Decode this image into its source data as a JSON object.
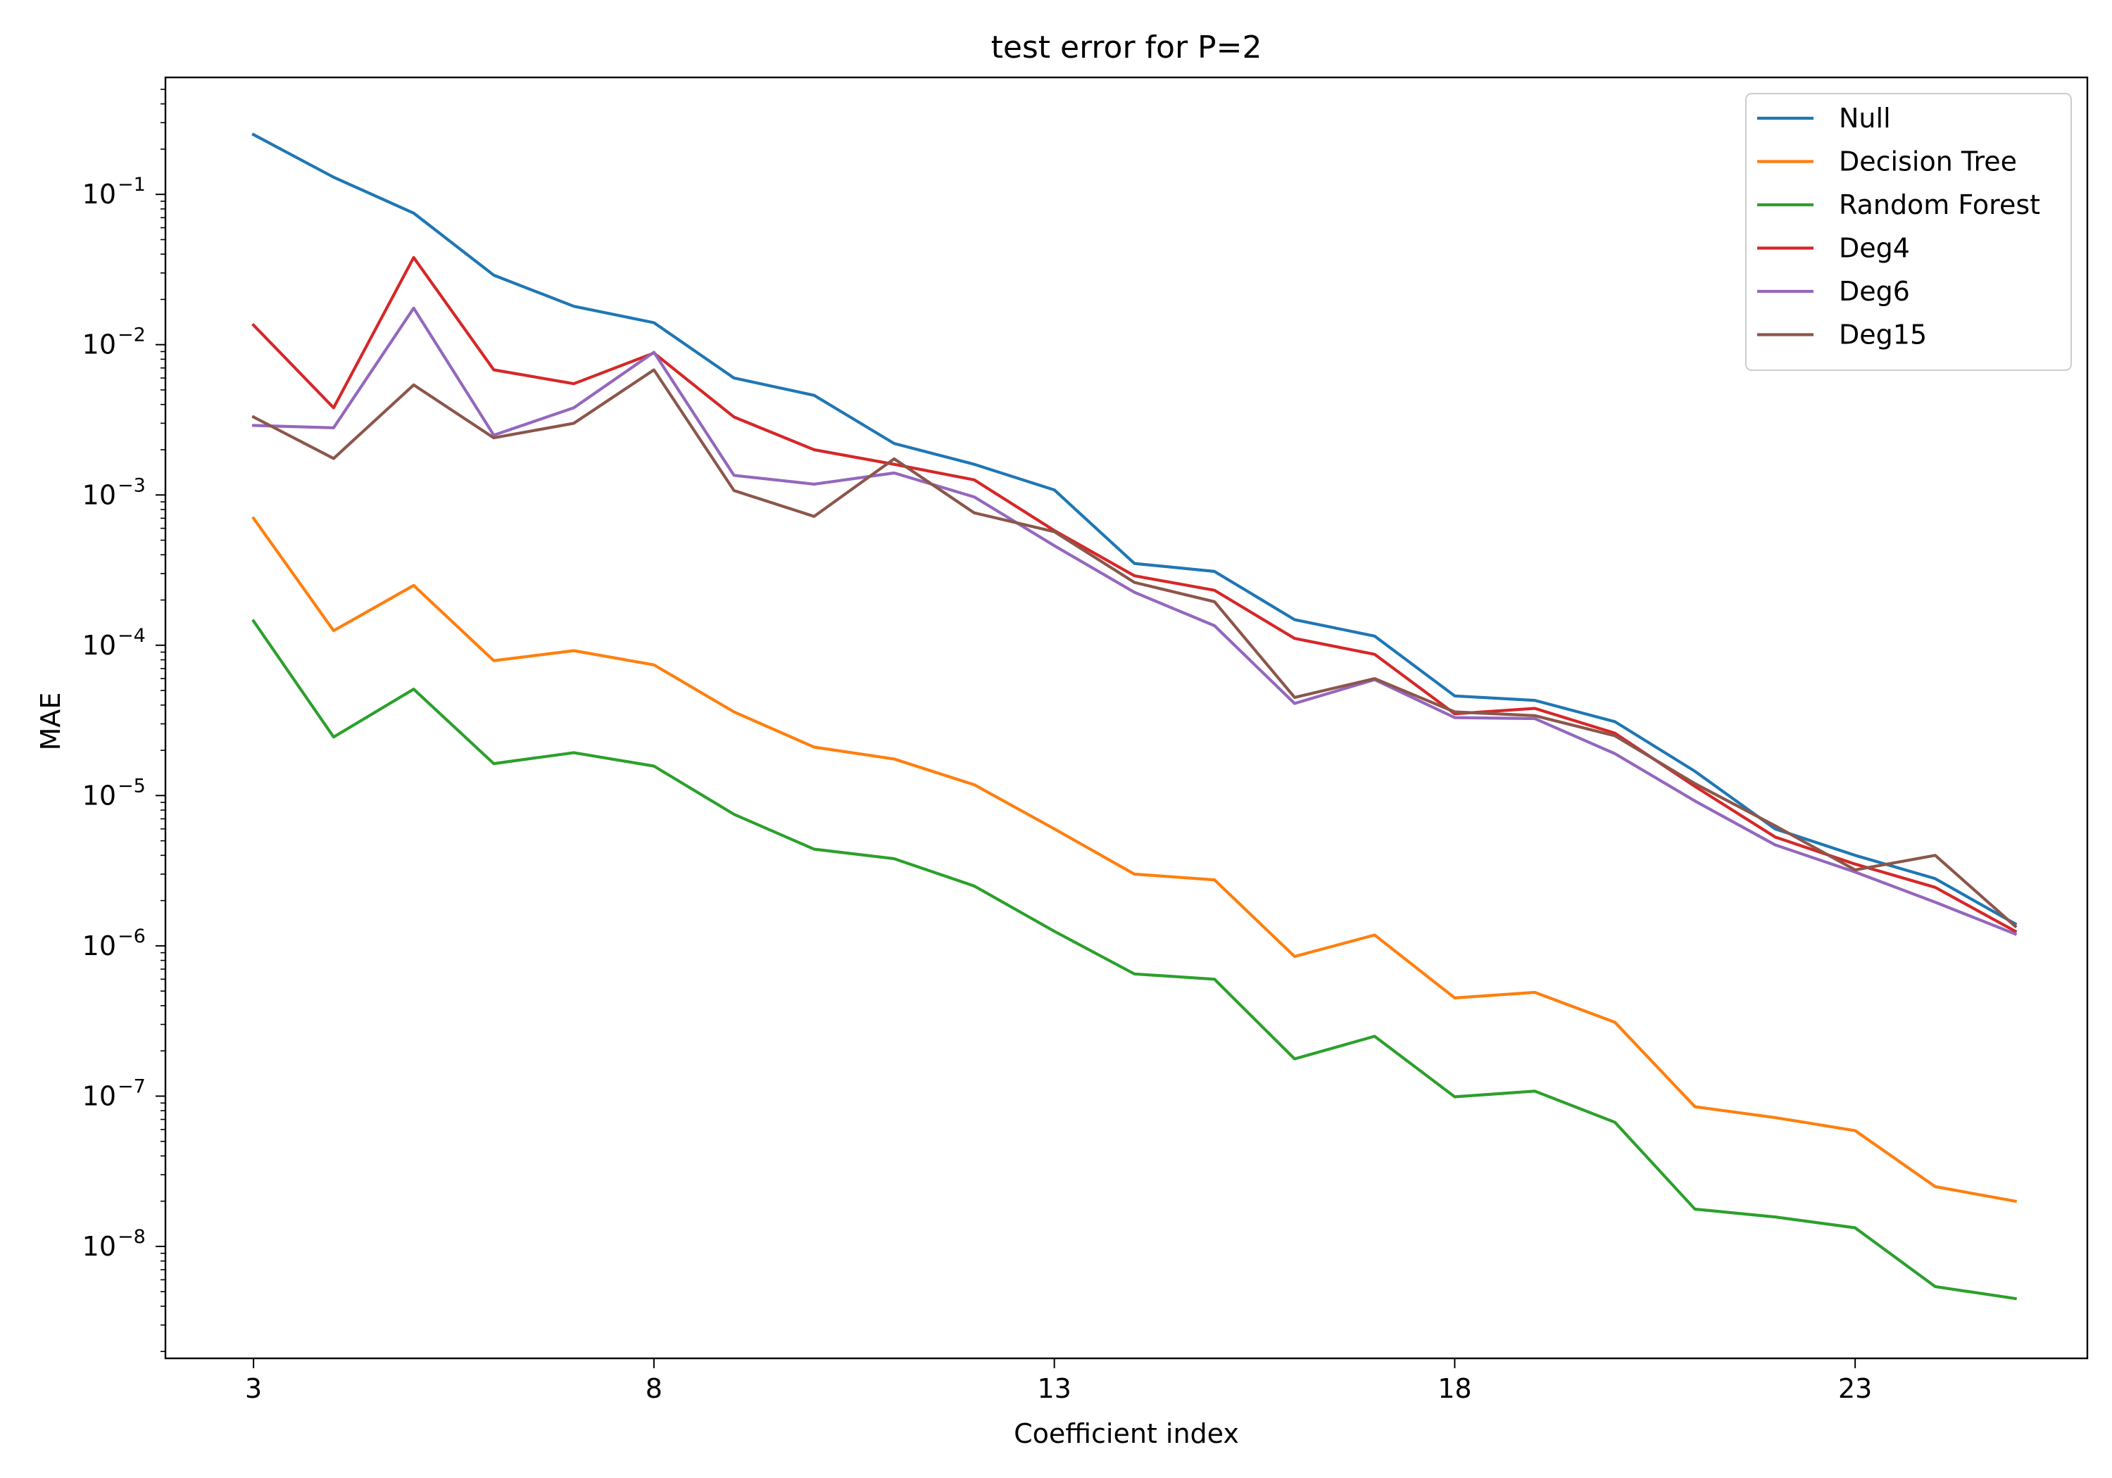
{
  "chart_data": {
    "type": "line",
    "title": "test error for P=2",
    "xlabel": "Coefficient index",
    "ylabel": "MAE",
    "yscale": "log",
    "x": [
      3,
      4,
      5,
      6,
      7,
      8,
      9,
      10,
      11,
      12,
      13,
      14,
      15,
      16,
      17,
      18,
      19,
      20,
      21,
      22,
      23,
      24,
      25
    ],
    "xlim": [
      1.9,
      25.9
    ],
    "ylim": [
      1.8e-09,
      0.6
    ],
    "x_ticks": [
      3,
      8,
      13,
      18,
      23
    ],
    "x_tick_labels": [
      "3",
      "8",
      "13",
      "18",
      "23"
    ],
    "y_tick_exponents": [
      -8,
      -7,
      -6,
      -5,
      -4,
      -3,
      -2,
      -1
    ],
    "y_tick_labels": [
      "10",
      "10",
      "10",
      "10",
      "10",
      "10",
      "10",
      "10"
    ],
    "y_tick_superscripts": [
      "−8",
      "−7",
      "−6",
      "−5",
      "−4",
      "−3",
      "−2",
      "−1"
    ],
    "grid": false,
    "legend_position": "top-right",
    "series": [
      {
        "name": "Null",
        "color": "#1f77b4",
        "values": [
          0.25,
          0.13,
          0.075,
          0.029,
          0.018,
          0.014,
          0.006,
          0.0046,
          0.0022,
          0.0016,
          0.00108,
          0.00035,
          0.00031,
          0.000148,
          0.000115,
          4.6e-05,
          4.3e-05,
          3.1e-05,
          1.45e-05,
          6e-06,
          4e-06,
          2.8e-06,
          1.4e-06
        ]
      },
      {
        "name": "Decision Tree",
        "color": "#ff7f0e",
        "values": [
          0.0007,
          0.000125,
          0.00025,
          7.9e-05,
          9.2e-05,
          7.4e-05,
          3.6e-05,
          2.1e-05,
          1.75e-05,
          1.18e-05,
          6e-06,
          3e-06,
          2.75e-06,
          8.5e-07,
          1.18e-06,
          4.5e-07,
          4.9e-07,
          3.1e-07,
          8.5e-08,
          7.2e-08,
          5.9e-08,
          2.5e-08,
          2e-08
        ]
      },
      {
        "name": "Random Forest",
        "color": "#2ca02c",
        "values": [
          0.000145,
          2.45e-05,
          5.1e-05,
          1.63e-05,
          1.93e-05,
          1.57e-05,
          7.5e-06,
          4.4e-06,
          3.8e-06,
          2.5e-06,
          1.25e-06,
          6.5e-07,
          6e-07,
          1.77e-07,
          2.5e-07,
          9.9e-08,
          1.08e-07,
          6.7e-08,
          1.77e-08,
          1.57e-08,
          1.33e-08,
          5.4e-09,
          4.5e-09
        ]
      },
      {
        "name": "Deg4",
        "color": "#d62728",
        "values": [
          0.0135,
          0.0038,
          0.038,
          0.0068,
          0.0055,
          0.0088,
          0.0033,
          0.002,
          0.0016,
          0.00126,
          0.00058,
          0.00029,
          0.000232,
          0.000111,
          8.7e-05,
          3.5e-05,
          3.8e-05,
          2.6e-05,
          1.15e-05,
          5.3e-06,
          3.5e-06,
          2.45e-06,
          1.25e-06
        ]
      },
      {
        "name": "Deg6",
        "color": "#9467bd",
        "values": [
          0.0029,
          0.0028,
          0.0175,
          0.0025,
          0.0038,
          0.0089,
          0.00135,
          0.00118,
          0.0014,
          0.00097,
          0.00046,
          0.000225,
          0.000135,
          4.1e-05,
          5.9e-05,
          3.3e-05,
          3.25e-05,
          1.9e-05,
          9.2e-06,
          4.7e-06,
          3.1e-06,
          1.95e-06,
          1.2e-06
        ]
      },
      {
        "name": "Deg15",
        "color": "#8c564b",
        "values": [
          0.0033,
          0.00175,
          0.0054,
          0.0024,
          0.003,
          0.0068,
          0.00107,
          0.00072,
          0.00174,
          0.00076,
          0.00057,
          0.000262,
          0.000195,
          4.5e-05,
          6e-05,
          3.6e-05,
          3.4e-05,
          2.5e-05,
          1.2e-05,
          6.3e-06,
          3.2e-06,
          4e-06,
          1.35e-06
        ]
      }
    ]
  }
}
